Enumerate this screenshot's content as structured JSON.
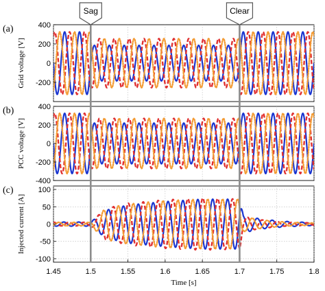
{
  "chart_data": [
    {
      "type": "line",
      "panel_label": "(a)",
      "ylabel": "Grid voltage [V]",
      "ylim": [
        -400,
        400
      ],
      "yticks": [
        400,
        200,
        0,
        -200
      ],
      "xlim": [
        1.45,
        1.8
      ],
      "grid": true,
      "series": [
        {
          "color": "#1a35d0",
          "style": "solid",
          "phase_deg": 0,
          "x": [
            1.45,
            1.5,
            1.5,
            1.7,
            1.7,
            1.8
          ],
          "amplitude": [
            325,
            325,
            185,
            185,
            325,
            325
          ]
        },
        {
          "color": "#e03030",
          "style": "dashed",
          "phase_deg": -120,
          "x": [
            1.45,
            1.5,
            1.5,
            1.7,
            1.7,
            1.8
          ],
          "amplitude": [
            325,
            325,
            255,
            255,
            325,
            325
          ]
        },
        {
          "color": "#f39c35",
          "style": "dotted",
          "phase_deg": 120,
          "x": [
            1.45,
            1.5,
            1.5,
            1.7,
            1.7,
            1.8
          ],
          "amplitude": [
            325,
            325,
            255,
            255,
            325,
            325
          ]
        }
      ]
    },
    {
      "type": "line",
      "panel_label": "(b)",
      "ylabel": "PCC voltage [V]",
      "ylim": [
        -400,
        400
      ],
      "yticks": [
        400,
        200,
        0,
        -200,
        -400
      ],
      "xlim": [
        1.45,
        1.8
      ],
      "grid": true,
      "series": [
        {
          "color": "#1a35d0",
          "style": "solid",
          "phase_deg": 0,
          "x": [
            1.45,
            1.5,
            1.5,
            1.7,
            1.7,
            1.8
          ],
          "amplitude": [
            325,
            325,
            220,
            220,
            325,
            325
          ]
        },
        {
          "color": "#e03030",
          "style": "dashed",
          "phase_deg": -120,
          "x": [
            1.45,
            1.5,
            1.5,
            1.7,
            1.7,
            1.8
          ],
          "amplitude": [
            325,
            325,
            270,
            270,
            325,
            325
          ]
        },
        {
          "color": "#f39c35",
          "style": "dotted",
          "phase_deg": 120,
          "x": [
            1.45,
            1.5,
            1.5,
            1.7,
            1.7,
            1.8
          ],
          "amplitude": [
            325,
            325,
            270,
            270,
            325,
            325
          ]
        }
      ]
    },
    {
      "type": "line",
      "panel_label": "(c)",
      "ylabel": "Injected current [A]",
      "ylim": [
        -110,
        110
      ],
      "yticks": [
        100,
        50,
        0,
        -50,
        -100
      ],
      "xlim": [
        1.45,
        1.8
      ],
      "xticks": [
        1.45,
        1.5,
        1.55,
        1.6,
        1.65,
        1.7,
        1.75,
        1.8
      ],
      "xlabel": "Time [s]",
      "grid": true,
      "series": [
        {
          "color": "#1a35d0",
          "style": "solid",
          "phase_deg": 20,
          "x": [
            1.45,
            1.5,
            1.52,
            1.55,
            1.6,
            1.65,
            1.7,
            1.705,
            1.73,
            1.76,
            1.8
          ],
          "amplitude": [
            6,
            6,
            40,
            55,
            65,
            72,
            72,
            25,
            14,
            8,
            4
          ]
        },
        {
          "color": "#e03030",
          "style": "dashed",
          "phase_deg": -100,
          "x": [
            1.45,
            1.5,
            1.52,
            1.55,
            1.6,
            1.65,
            1.7,
            1.705,
            1.73,
            1.76,
            1.8
          ],
          "amplitude": [
            5,
            5,
            45,
            60,
            70,
            75,
            72,
            22,
            12,
            6,
            3
          ]
        },
        {
          "color": "#f39c35",
          "style": "dotted",
          "phase_deg": 140,
          "x": [
            1.45,
            1.5,
            1.52,
            1.55,
            1.6,
            1.65,
            1.7,
            1.705,
            1.73,
            1.76,
            1.8
          ],
          "amplitude": [
            5,
            5,
            45,
            58,
            68,
            72,
            72,
            22,
            12,
            6,
            3
          ]
        }
      ]
    }
  ],
  "frequency_hz": 50,
  "markers": [
    {
      "label": "Sag",
      "x": 1.5
    },
    {
      "label": "Clear",
      "x": 1.7
    }
  ]
}
